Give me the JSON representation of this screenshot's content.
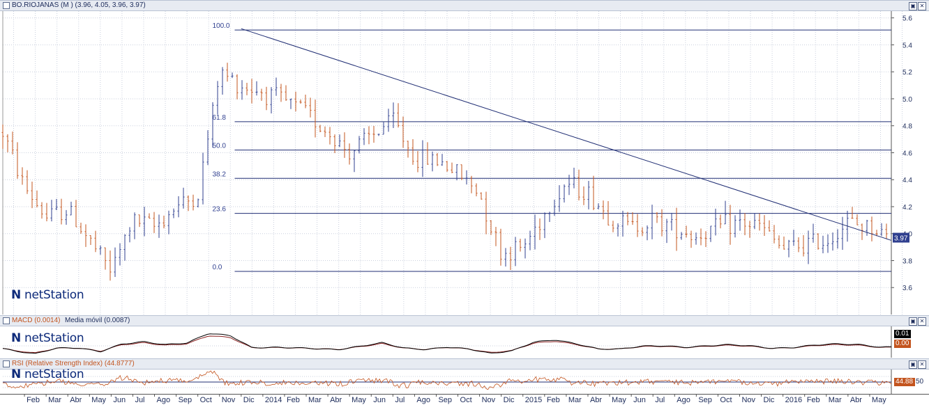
{
  "main_panel": {
    "title": "BO.RIOJANAS (M ) (3.96, 4.05, 3.96, 3.97)",
    "last_price_label": "3.97",
    "watermark": "netStation",
    "close_btn": "✕",
    "restore_btn": "▣"
  },
  "macd_panel": {
    "title": "MACD (0.0014)",
    "title2": "Media móvil (0.0087)",
    "value1": "0.01",
    "value2": "0.00",
    "watermark": "netStation",
    "close_btn": "✕",
    "restore_btn": "▣"
  },
  "rsi_panel": {
    "title": "RSI (Relative Strength Index) (44.8777)",
    "value": "44.88",
    "level_label": "50",
    "watermark": "netStation",
    "close_btn": "✕",
    "restore_btn": "▣"
  },
  "colors": {
    "up": "#2f3f8f",
    "down": "#c3541e",
    "line": "#1f2d73",
    "rsi": "#c3541e",
    "macd": "#000000",
    "signal": "#8b2020"
  },
  "chart_data": [
    {
      "type": "ohlc",
      "title": "BO.RIOJANAS (M )",
      "ylim": [
        3.4,
        5.65
      ],
      "y_ticks": [
        "5.6",
        "5.4",
        "5.2",
        "5.0",
        "4.8",
        "4.6",
        "4.4",
        "4.2",
        "4.0",
        "3.8",
        "3.6"
      ],
      "x_tick_labels": [
        "Feb",
        "Mar",
        "Abr",
        "May",
        "Jun",
        "Jul",
        "Ago",
        "Sep",
        "Oct",
        "Nov",
        "Dic",
        "2014",
        "Feb",
        "Mar",
        "Abr",
        "May",
        "Jun",
        "Jul",
        "Ago",
        "Sep",
        "Oct",
        "Nov",
        "Dic",
        "2015",
        "Feb",
        "Mar",
        "Abr",
        "May",
        "Jun",
        "Jul",
        "Ago",
        "Sep",
        "Oct",
        "Nov",
        "Dic",
        "2016",
        "Feb",
        "Mar",
        "Abr",
        "May"
      ],
      "price_path": [
        {
          "x": "Ene 2013",
          "y": 4.75
        },
        {
          "x": "Feb 2013",
          "y": 4.35
        },
        {
          "x": "Mar 2013",
          "y": 4.12
        },
        {
          "x": "Abr 2013",
          "y": 4.18
        },
        {
          "x": "May 2013",
          "y": 3.95
        },
        {
          "x": "Jun 2013",
          "y": 3.72
        },
        {
          "x": "Jul 2013",
          "y": 4.1
        },
        {
          "x": "Ago 2013",
          "y": 4.05
        },
        {
          "x": "Sep 2013",
          "y": 4.2
        },
        {
          "x": "Oct 2013",
          "y": 4.28
        },
        {
          "x": "Nov 2013",
          "y": 5.2
        },
        {
          "x": "Dic 2013",
          "y": 5.1
        },
        {
          "x": "Ene 2014",
          "y": 5.05
        },
        {
          "x": "Feb 2014",
          "y": 4.98
        },
        {
          "x": "Mar 2014",
          "y": 4.9
        },
        {
          "x": "Abr 2014",
          "y": 4.75
        },
        {
          "x": "May 2014",
          "y": 4.6
        },
        {
          "x": "Jun 2014",
          "y": 4.72
        },
        {
          "x": "Jul 2014",
          "y": 4.85
        },
        {
          "x": "Ago 2014",
          "y": 4.55
        },
        {
          "x": "Sep 2014",
          "y": 4.55
        },
        {
          "x": "Oct 2014",
          "y": 4.45
        },
        {
          "x": "Nov 2014",
          "y": 4.3
        },
        {
          "x": "Dic 2014",
          "y": 3.85
        },
        {
          "x": "Ene 2015",
          "y": 3.9
        },
        {
          "x": "Feb 2015",
          "y": 4.15
        },
        {
          "x": "Mar 2015",
          "y": 4.38
        },
        {
          "x": "Abr 2015",
          "y": 4.3
        },
        {
          "x": "May 2015",
          "y": 4.12
        },
        {
          "x": "Jun 2015",
          "y": 4.05
        },
        {
          "x": "Jul 2015",
          "y": 4.1
        },
        {
          "x": "Ago 2015",
          "y": 4.05
        },
        {
          "x": "Sep 2015",
          "y": 3.98
        },
        {
          "x": "Oct 2015",
          "y": 4.05
        },
        {
          "x": "Nov 2015",
          "y": 4.08
        },
        {
          "x": "Dic 2015",
          "y": 4.05
        },
        {
          "x": "Ene 2016",
          "y": 3.88
        },
        {
          "x": "Feb 2016",
          "y": 3.92
        },
        {
          "x": "Mar 2016",
          "y": 3.95
        },
        {
          "x": "Abr 2016",
          "y": 4.08
        },
        {
          "x": "May 2016",
          "y": 4.05
        },
        {
          "x": "Jun 2016",
          "y": 3.97
        }
      ],
      "fibonacci_levels": [
        {
          "label": "100.0",
          "value": 5.51
        },
        {
          "label": "61.8",
          "value": 4.83
        },
        {
          "label": "50.0",
          "value": 4.62
        },
        {
          "label": "38.2",
          "value": 4.41
        },
        {
          "label": "23.6",
          "value": 4.15
        },
        {
          "label": "0.0",
          "value": 3.72
        }
      ],
      "trendline": [
        {
          "x": "Dic 2013",
          "y": 5.52
        },
        {
          "x": "Jun 2016",
          "y": 3.95
        }
      ],
      "last_value": 3.97
    },
    {
      "type": "line",
      "title": "MACD (0.0014)",
      "series": [
        {
          "name": "MACD (0.0014)",
          "last": 0.0014
        },
        {
          "name": "Media móvil (0.0087)",
          "last": 0.0087
        }
      ]
    },
    {
      "type": "line",
      "title": "RSI (Relative Strength Index) (44.8777)",
      "series": [
        {
          "name": "RSI (Relative Strength Index)",
          "last": 44.8777
        }
      ],
      "reference_level": 50
    }
  ]
}
